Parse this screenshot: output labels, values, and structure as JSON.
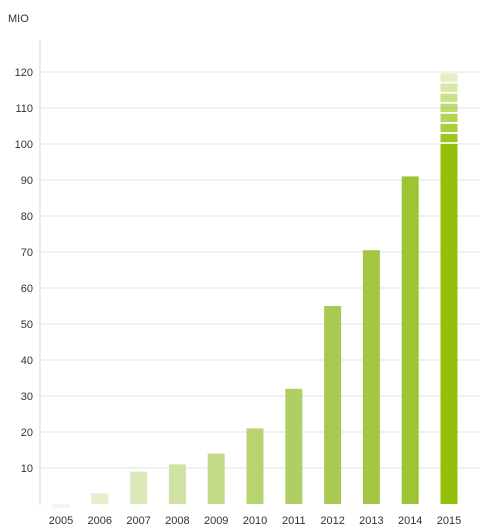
{
  "chart_data": {
    "type": "bar",
    "title": "",
    "ylabel": "MIO",
    "xlabel": "",
    "categories": [
      "2005",
      "2006",
      "2007",
      "2008",
      "2009",
      "2010",
      "2011",
      "2012",
      "2013",
      "2014",
      "2015"
    ],
    "values": [
      -1,
      3,
      9,
      11,
      14,
      21,
      32,
      55,
      70.5,
      91,
      120
    ],
    "solid_to": [
      null,
      null,
      null,
      null,
      null,
      null,
      null,
      null,
      null,
      null,
      100
    ],
    "yticks": [
      10,
      20,
      30,
      40,
      50,
      60,
      70,
      80,
      90,
      100,
      110,
      120
    ],
    "ylim": [
      -4,
      130
    ],
    "grid": true,
    "legend": "none",
    "colors": [
      "#f2f5e6",
      "#e6efcc",
      "#dbe8b8",
      "#cfe2a3",
      "#c2d985",
      "#b8d472",
      "#b0cf62",
      "#a8ca52",
      "#a3c744",
      "#9cc434",
      "#94c00a"
    ]
  }
}
